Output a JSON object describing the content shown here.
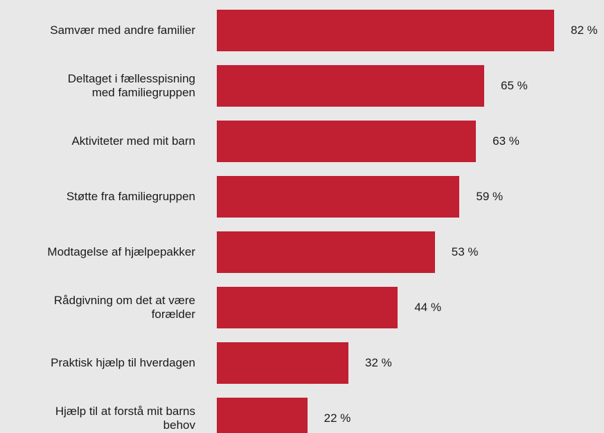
{
  "chart_data": {
    "type": "bar",
    "orientation": "horizontal",
    "color": "#c11f32",
    "categories": [
      "Samvær med andre familier",
      "Deltaget i fællesspisning\nmed familiegruppen",
      "Aktiviteter med mit barn",
      "Støtte fra familiegruppen",
      "Modtagelse af hjælpepakker",
      "Rådgivning om det at være\nforælder",
      "Praktisk hjælp til hverdagen",
      "Hjælp til at forstå mit barns\nbehov"
    ],
    "values": [
      82,
      65,
      63,
      59,
      53,
      44,
      32,
      22
    ],
    "value_labels": [
      "82 %",
      "65 %",
      "63 %",
      "59 %",
      "53 %",
      "44 %",
      "32 %",
      "22 %"
    ]
  }
}
